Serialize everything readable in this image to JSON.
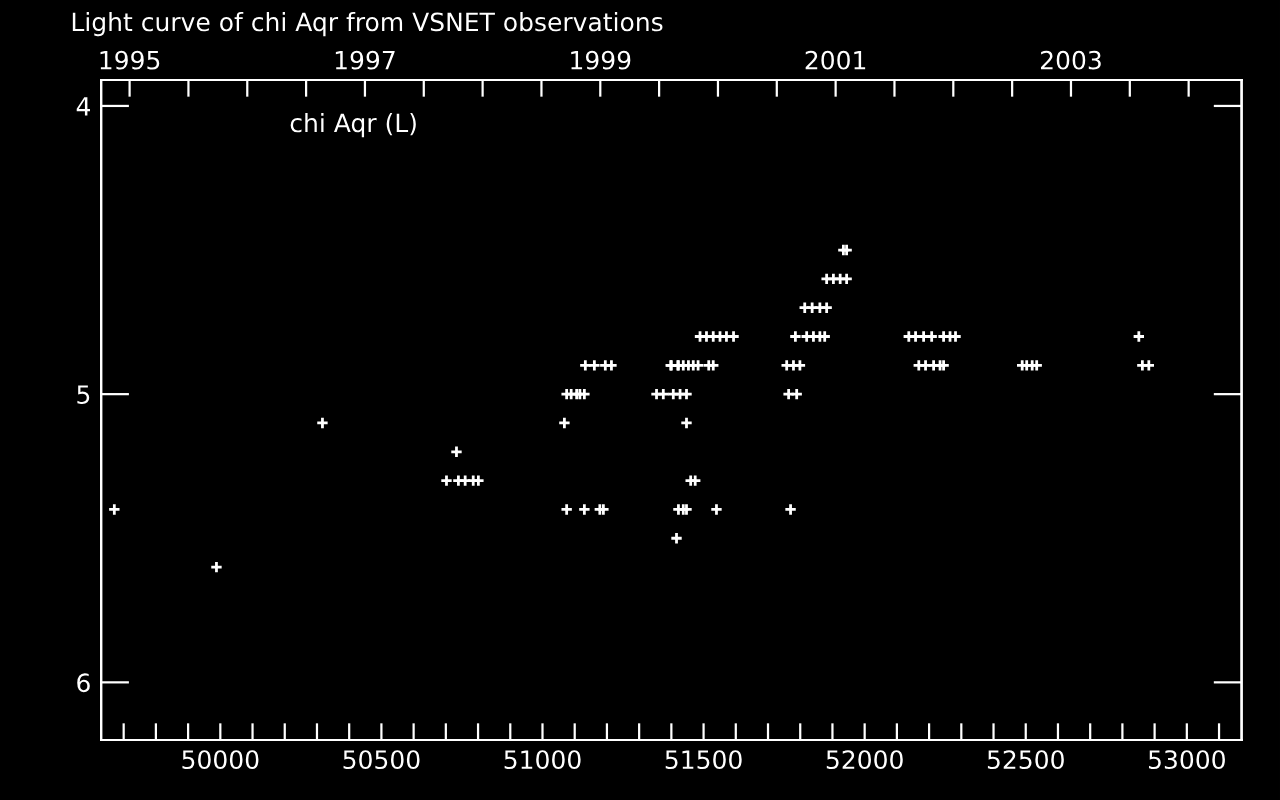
{
  "chart_data": {
    "type": "scatter",
    "title": "Light curve of chi Aqr from VSNET observations",
    "annotations": [
      "chi Aqr (L)"
    ],
    "marker": "cross",
    "grid": false,
    "legend": false,
    "xlim": [
      49630,
      53170
    ],
    "ylim": [
      6.2,
      3.91
    ],
    "xticks": [
      {
        "value": 49700,
        "label": null
      },
      {
        "value": 49800,
        "label": null
      },
      {
        "value": 49900,
        "label": null
      },
      {
        "value": 50000,
        "label": "50000"
      },
      {
        "value": 50100,
        "label": null
      },
      {
        "value": 50200,
        "label": null
      },
      {
        "value": 50300,
        "label": null
      },
      {
        "value": 50400,
        "label": null
      },
      {
        "value": 50500,
        "label": "50500"
      },
      {
        "value": 50600,
        "label": null
      },
      {
        "value": 50700,
        "label": null
      },
      {
        "value": 50800,
        "label": null
      },
      {
        "value": 50900,
        "label": null
      },
      {
        "value": 51000,
        "label": "51000"
      },
      {
        "value": 51100,
        "label": null
      },
      {
        "value": 51200,
        "label": null
      },
      {
        "value": 51300,
        "label": null
      },
      {
        "value": 51400,
        "label": null
      },
      {
        "value": 51500,
        "label": "51500"
      },
      {
        "value": 51600,
        "label": null
      },
      {
        "value": 51700,
        "label": null
      },
      {
        "value": 51800,
        "label": null
      },
      {
        "value": 51900,
        "label": null
      },
      {
        "value": 52000,
        "label": "52000"
      },
      {
        "value": 52100,
        "label": null
      },
      {
        "value": 52200,
        "label": null
      },
      {
        "value": 52300,
        "label": null
      },
      {
        "value": 52400,
        "label": null
      },
      {
        "value": 52500,
        "label": "52500"
      },
      {
        "value": 52600,
        "label": null
      },
      {
        "value": 52700,
        "label": null
      },
      {
        "value": 52800,
        "label": null
      },
      {
        "value": 52900,
        "label": null
      },
      {
        "value": 53000,
        "label": "53000"
      },
      {
        "value": 53100,
        "label": null
      }
    ],
    "yticks": [
      4,
      5,
      6
    ],
    "x2lim": [
      1994.758,
      2004.45
    ],
    "x2ticks": [
      1995,
      {
        "value": 1995.5,
        "label": null
      },
      {
        "value": 1996,
        "label": null
      },
      {
        "value": 1996.5,
        "label": null
      },
      1997,
      {
        "value": 1997.5,
        "label": null
      },
      {
        "value": 1998,
        "label": null
      },
      {
        "value": 1998.5,
        "label": null
      },
      1999,
      {
        "value": 1999.5,
        "label": null
      },
      {
        "value": 2000,
        "label": null
      },
      {
        "value": 2000.5,
        "label": null
      },
      2001,
      {
        "value": 2001.5,
        "label": null
      },
      {
        "value": 2002,
        "label": null
      },
      {
        "value": 2002.5,
        "label": null
      },
      2003,
      {
        "value": 2003.5,
        "label": null
      },
      {
        "value": 2004,
        "label": null
      }
    ],
    "series": [
      {
        "color": "#ffffff",
        "x": [
          49671,
          49988,
          50317,
          50702,
          50733,
          50739,
          50760,
          50785,
          50801,
          51068,
          51075,
          51089,
          51106,
          51116,
          51130,
          51075,
          51130,
          51178,
          51189,
          51133,
          51161,
          51195,
          51214,
          51354,
          51375,
          51406,
          51427,
          51447,
          51764,
          51789,
          51398,
          51422,
          51447,
          51460,
          51474,
          51422,
          51437,
          51447,
          51540,
          51770,
          51416,
          51400,
          51420,
          51437,
          51453,
          51468,
          51483,
          51516,
          51530,
          51758,
          51779,
          51799,
          52168,
          52189,
          52214,
          52234,
          52245,
          52489,
          52503,
          52520,
          52534,
          52862,
          52882,
          51489,
          51509,
          51530,
          51551,
          51571,
          51593,
          51785,
          51820,
          51841,
          51861,
          51876,
          52137,
          52158,
          52183,
          52208,
          52245,
          52265,
          52282,
          52851,
          51814,
          51837,
          51861,
          51882,
          51882,
          51903,
          51924,
          51944,
          51934,
          51944
        ],
        "values": [
          5.4,
          5.6,
          5.1,
          5.3,
          5.2,
          5.3,
          5.3,
          5.3,
          5.3,
          5.1,
          5.0,
          5.0,
          5.0,
          5.0,
          5.0,
          5.4,
          5.4,
          5.4,
          5.4,
          4.9,
          4.9,
          4.9,
          4.9,
          5.0,
          5.0,
          5.0,
          5.0,
          5.0,
          5.0,
          5.0,
          4.9,
          4.9,
          5.1,
          5.3,
          5.3,
          5.4,
          5.4,
          5.4,
          5.4,
          5.4,
          5.5,
          4.9,
          4.9,
          4.9,
          4.9,
          4.9,
          4.9,
          4.9,
          4.9,
          4.9,
          4.9,
          4.9,
          4.9,
          4.9,
          4.9,
          4.9,
          4.9,
          4.9,
          4.9,
          4.9,
          4.9,
          4.9,
          4.9,
          4.8,
          4.8,
          4.8,
          4.8,
          4.8,
          4.8,
          4.8,
          4.8,
          4.8,
          4.8,
          4.8,
          4.8,
          4.8,
          4.8,
          4.8,
          4.8,
          4.8,
          4.8,
          4.8,
          4.7,
          4.7,
          4.7,
          4.7,
          4.6,
          4.6,
          4.6,
          4.6,
          4.5,
          4.5
        ]
      }
    ]
  }
}
